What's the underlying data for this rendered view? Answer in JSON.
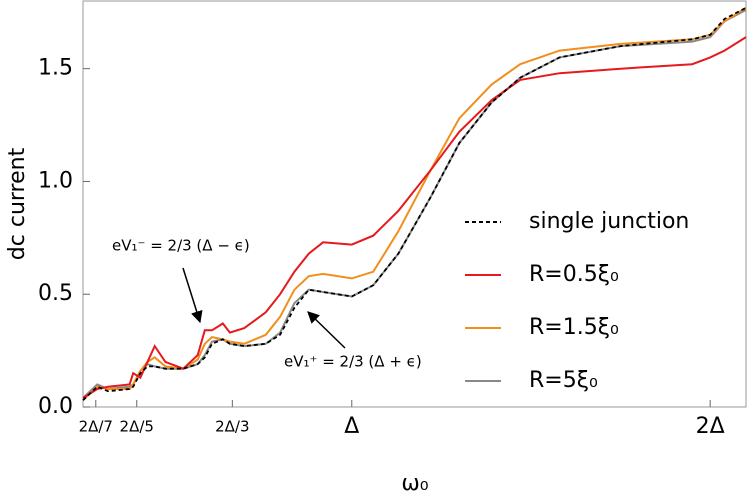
{
  "chart_data": {
    "type": "line",
    "xlabel": "ω₀",
    "ylabel": "dc current",
    "x": [
      0.25,
      0.29,
      0.32,
      0.38,
      0.39,
      0.41,
      0.43,
      0.45,
      0.48,
      0.53,
      0.57,
      0.59,
      0.61,
      0.64,
      0.66,
      0.7,
      0.76,
      0.8,
      0.84,
      0.88,
      0.92,
      1.0,
      1.06,
      1.13,
      1.22,
      1.3,
      1.39,
      1.47,
      1.58,
      1.75,
      1.95,
      2.0,
      2.04,
      2.1
    ],
    "series": [
      {
        "name": "single junction",
        "color": "#000000",
        "dash": "dashed",
        "values": [
          0.03,
          0.09,
          0.07,
          0.08,
          0.09,
          0.15,
          0.18,
          0.18,
          0.17,
          0.17,
          0.19,
          0.22,
          0.28,
          0.3,
          0.28,
          0.27,
          0.28,
          0.32,
          0.44,
          0.52,
          0.51,
          0.49,
          0.54,
          0.68,
          0.93,
          1.17,
          1.35,
          1.46,
          1.55,
          1.6,
          1.63,
          1.65,
          1.72,
          1.77
        ]
      },
      {
        "name": "R=0.5ξ₀",
        "color": "#e41a1c",
        "dash": "solid",
        "values": [
          0.04,
          0.08,
          0.09,
          0.1,
          0.15,
          0.13,
          0.2,
          0.27,
          0.2,
          0.17,
          0.23,
          0.34,
          0.34,
          0.37,
          0.33,
          0.35,
          0.42,
          0.5,
          0.6,
          0.68,
          0.73,
          0.72,
          0.76,
          0.87,
          1.05,
          1.22,
          1.36,
          1.45,
          1.48,
          1.5,
          1.52,
          1.55,
          1.58,
          1.64
        ]
      },
      {
        "name": "R=1.5ξ₀",
        "color": "#f28e1c",
        "dash": "solid",
        "values": [
          0.03,
          0.09,
          0.08,
          0.08,
          0.1,
          0.16,
          0.2,
          0.22,
          0.18,
          0.17,
          0.21,
          0.28,
          0.31,
          0.3,
          0.29,
          0.28,
          0.32,
          0.4,
          0.52,
          0.58,
          0.59,
          0.57,
          0.6,
          0.78,
          1.05,
          1.28,
          1.43,
          1.52,
          1.58,
          1.61,
          1.63,
          1.65,
          1.71,
          1.77
        ]
      },
      {
        "name": "R=5ξ₀",
        "color": "#888888",
        "dash": "solid",
        "values": [
          0.04,
          0.1,
          0.08,
          0.09,
          0.1,
          0.16,
          0.19,
          0.18,
          0.17,
          0.17,
          0.19,
          0.23,
          0.29,
          0.3,
          0.28,
          0.27,
          0.28,
          0.33,
          0.46,
          0.52,
          0.51,
          0.49,
          0.54,
          0.68,
          0.93,
          1.17,
          1.35,
          1.46,
          1.55,
          1.6,
          1.62,
          1.64,
          1.71,
          1.76
        ]
      }
    ],
    "xlim": [
      0.25,
      2.1
    ],
    "ylim": [
      0,
      1.8
    ],
    "xticks": [
      {
        "value": 0.2857,
        "label": "2Δ/7"
      },
      {
        "value": 0.4,
        "label": "2Δ/5"
      },
      {
        "value": 0.6667,
        "label": "2Δ/3"
      },
      {
        "value": 1,
        "label": "Δ"
      },
      {
        "value": 2,
        "label": "2Δ"
      }
    ],
    "yticks": [
      {
        "value": 0,
        "label": "0.0"
      },
      0.5,
      {
        "value": 1,
        "label": "1.0"
      },
      1.5
    ],
    "annotations": [
      "eV₁⁻ = 2/3 (Δ − ϵ)",
      "eV₁⁺ = 2/3 (Δ + ϵ)"
    ],
    "grid": false,
    "legend": "right"
  }
}
